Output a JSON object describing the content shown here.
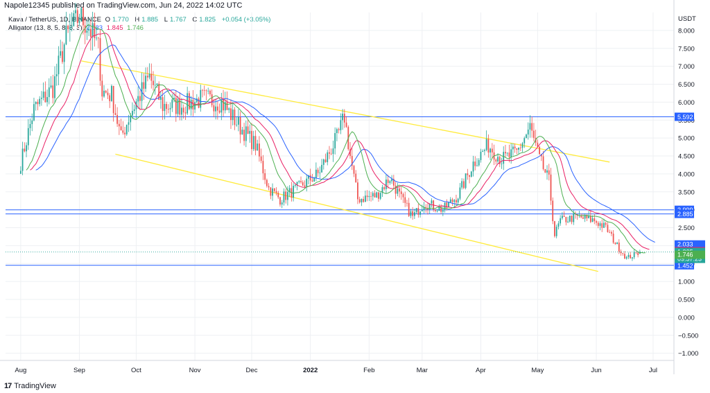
{
  "header": {
    "text": "Napole12345 published on TradingView.com, Jun 24, 2022 14:02 UTC"
  },
  "legend": {
    "symbol": "Kava / TetherUS, 1D, BINANCE",
    "o_label": "O",
    "o_value": "1.770",
    "h_label": "H",
    "h_value": "1.885",
    "l_label": "L",
    "l_value": "1.767",
    "c_label": "C",
    "c_value": "1.825",
    "change": "+0.054 (+3.05%)",
    "alligator_label": "Alligator (13, 8, 5, 8, 5, 3)",
    "jaw_value": "2.033",
    "teeth_value": "1.845",
    "lips_value": "1.746"
  },
  "footer": {
    "brand": "TradingView",
    "logo_glyph": "17"
  },
  "colors": {
    "up": "#26a69a",
    "down": "#ef5350",
    "jaw": "#2962ff",
    "teeth": "#e91e63",
    "lips": "#4caf50",
    "trendline": "#ffeb3b",
    "hline": "#2962ff",
    "grid": "#eef0f3"
  },
  "chart_data": {
    "type": "candlestick",
    "title": "Kava / TetherUS, 1D, BINANCE",
    "y_axis_label": "USDT",
    "ylim": [
      -1.2,
      8.5
    ],
    "y_ticks": [
      "8.000",
      "7.500",
      "7.000",
      "6.500",
      "6.000",
      "5.500",
      "5.000",
      "4.500",
      "4.000",
      "3.500",
      "3.000",
      "2.500",
      "2.000",
      "1.500",
      "1.000",
      "0.500",
      "0.000",
      "−0.500",
      "−1.000"
    ],
    "x_ticks": [
      "Aug",
      "Sep",
      "Oct",
      "Nov",
      "Dec",
      "2022",
      "Feb",
      "Mar",
      "Apr",
      "May",
      "Jun",
      "Jul"
    ],
    "grid": true,
    "price_path": [
      [
        "2021-08-01",
        4.3
      ],
      [
        "2021-08-08",
        5.8
      ],
      [
        "2021-08-18",
        6.4
      ],
      [
        "2021-08-25",
        7.8
      ],
      [
        "2021-09-01",
        8.4
      ],
      [
        "2021-09-06",
        8.1
      ],
      [
        "2021-09-11",
        7.5
      ],
      [
        "2021-09-13",
        6.3
      ],
      [
        "2021-09-18",
        6.2
      ],
      [
        "2021-09-23",
        5.0
      ],
      [
        "2021-09-28",
        5.7
      ],
      [
        "2021-10-08",
        6.7
      ],
      [
        "2021-10-15",
        5.9
      ],
      [
        "2021-10-25",
        5.9
      ],
      [
        "2021-11-05",
        6.1
      ],
      [
        "2021-11-15",
        6.0
      ],
      [
        "2021-11-25",
        5.3
      ],
      [
        "2021-12-03",
        4.8
      ],
      [
        "2021-12-10",
        3.6
      ],
      [
        "2021-12-16",
        3.3
      ],
      [
        "2021-12-25",
        3.6
      ],
      [
        "2022-01-05",
        4.0
      ],
      [
        "2022-01-15",
        5.0
      ],
      [
        "2022-01-19",
        5.6
      ],
      [
        "2022-01-22",
        4.5
      ],
      [
        "2022-01-26",
        3.3
      ],
      [
        "2022-02-05",
        3.4
      ],
      [
        "2022-02-12",
        3.9
      ],
      [
        "2022-02-18",
        3.3
      ],
      [
        "2022-02-24",
        2.8
      ],
      [
        "2022-03-02",
        3.2
      ],
      [
        "2022-03-12",
        3.0
      ],
      [
        "2022-03-20",
        3.4
      ],
      [
        "2022-03-28",
        4.3
      ],
      [
        "2022-04-05",
        4.8
      ],
      [
        "2022-04-12",
        4.4
      ],
      [
        "2022-04-20",
        4.6
      ],
      [
        "2022-04-27",
        5.3
      ],
      [
        "2022-05-02",
        4.4
      ],
      [
        "2022-05-07",
        3.8
      ],
      [
        "2022-05-10",
        2.3
      ],
      [
        "2022-05-13",
        2.7
      ],
      [
        "2022-05-22",
        2.8
      ],
      [
        "2022-05-31",
        2.7
      ],
      [
        "2022-06-06",
        2.5
      ],
      [
        "2022-06-12",
        2.0
      ],
      [
        "2022-06-17",
        1.65
      ],
      [
        "2022-06-24",
        1.82
      ]
    ],
    "horizontal_levels": [
      {
        "value": 5.592,
        "label": "5.592"
      },
      {
        "value": 2.999,
        "label": "2.999"
      },
      {
        "value": 2.885,
        "label": "2.885"
      },
      {
        "value": 1.452,
        "label": "1.452"
      }
    ],
    "trendlines": [
      {
        "from": [
          "2021-09-02",
          7.15
        ],
        "to": [
          "2022-06-08",
          4.33
        ]
      },
      {
        "from": [
          "2021-09-20",
          4.55
        ],
        "to": [
          "2022-06-02",
          1.28
        ]
      }
    ],
    "price_labels": [
      {
        "label": "2.033",
        "value": 2.033,
        "color": "#2962ff"
      },
      {
        "label": "1.845",
        "value": 1.845,
        "color": "#e91e63"
      },
      {
        "label": "1.825",
        "value": 1.825,
        "color": "#26a69a",
        "countdown": "09:57:23"
      },
      {
        "label": "1.746",
        "value": 1.746,
        "color": "#4caf50"
      }
    ]
  }
}
